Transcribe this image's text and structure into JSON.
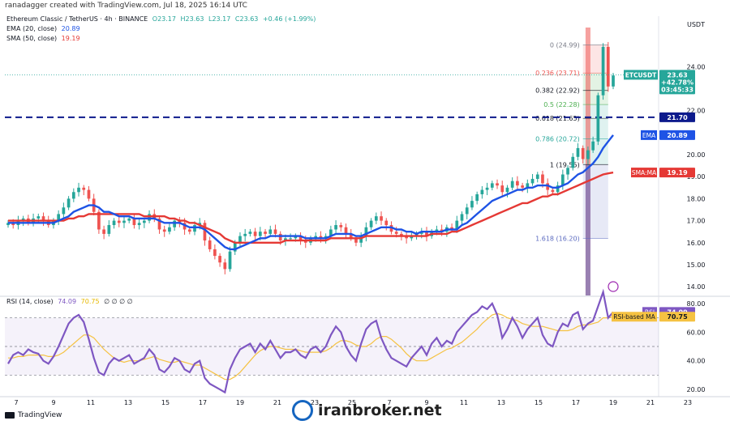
{
  "credit": "ranadagger created with TradingView.com, Jul 18, 2025 16:14 UTC",
  "legend": {
    "pair": "Ethereum Classic / TetherUS · 4h · BINANCE",
    "o": "O23.17",
    "h": "H23.63",
    "l": "L23.17",
    "c": "C23.63",
    "chg": "+0.46 (+1.99%)",
    "ema_label": "EMA (20, close)",
    "ema_value": "20.89",
    "sma_label": "SMA (50, close)",
    "sma_value": "19.19",
    "rsi_label": "RSI (14, close)",
    "rsi_value": "74.09",
    "rsima_value": "70.75",
    "rsi_extra": "∅ ∅ ∅ ∅"
  },
  "tv_brand": "TradingView",
  "watermark": "iranbroker.net",
  "colors": {
    "up": "#26a69a",
    "down": "#ef5350",
    "ema": "#1e53e5",
    "sma": "#e53935",
    "rsi": "#7e57c2",
    "rsima": "#f5c242",
    "level": "#0d1a8c"
  },
  "chart_data": [
    {
      "type": "candlestick",
      "title": "Ethereum Classic / TetherUS · 4h · BINANCE",
      "currency": "USDT",
      "ylim": [
        13.6,
        26.0
      ],
      "y_ticks": [
        "24.00",
        "22.00",
        "20.00",
        "19.00",
        "18.00",
        "17.00",
        "16.00",
        "15.00",
        "14.00"
      ],
      "x_ticks": [
        "7",
        "9",
        "11",
        "13",
        "15",
        "17",
        "19",
        "21",
        "23",
        "25",
        "7",
        "9",
        "11",
        "13",
        "15",
        "17",
        "19",
        "21",
        "23"
      ],
      "close": [
        16.9,
        16.8,
        17.0,
        17.1,
        16.9,
        17.1,
        17.2,
        17.0,
        16.8,
        17.0,
        17.3,
        17.6,
        18.0,
        18.3,
        18.5,
        18.4,
        18.0,
        17.4,
        16.6,
        16.4,
        16.8,
        17.0,
        16.9,
        17.0,
        17.1,
        16.8,
        16.9,
        17.0,
        17.3,
        17.1,
        16.6,
        16.5,
        16.7,
        17.0,
        16.9,
        16.6,
        16.5,
        16.8,
        16.9,
        16.1,
        15.7,
        15.4,
        15.1,
        14.8,
        15.6,
        16.0,
        16.3,
        16.4,
        16.5,
        16.3,
        16.5,
        16.4,
        16.6,
        16.4,
        16.1,
        16.2,
        16.2,
        16.3,
        16.1,
        16.0,
        16.2,
        16.3,
        16.2,
        16.3,
        16.6,
        16.8,
        16.7,
        16.4,
        16.2,
        16.0,
        16.3,
        16.7,
        17.0,
        17.2,
        17.0,
        16.8,
        16.5,
        16.4,
        16.3,
        16.2,
        16.3,
        16.4,
        16.5,
        16.3,
        16.5,
        16.6,
        16.5,
        16.7,
        16.6,
        17.0,
        17.3,
        17.6,
        17.9,
        18.2,
        18.4,
        18.5,
        18.7,
        18.6,
        18.3,
        18.5,
        18.8,
        18.6,
        18.5,
        18.7,
        18.9,
        19.1,
        18.7,
        18.4,
        18.3,
        18.6,
        19.1,
        19.4,
        19.9,
        20.3,
        19.8,
        20.2,
        20.6,
        22.7,
        24.9,
        23.1,
        23.6
      ],
      "key_level": "21.70",
      "price_label": "23.63",
      "price_change_label": "+42.78%",
      "countdown_label": "03:45:33",
      "symbol_label": "ETCUSDT",
      "fibonacci": [
        {
          "label": "0 (24.99)",
          "value": 24.99
        },
        {
          "label": "0.236 (23.71)",
          "value": 23.71
        },
        {
          "label": "0.382 (22.92)",
          "value": 22.92
        },
        {
          "label": "0.5 (22.28)",
          "value": 22.28
        },
        {
          "label": "0.618 (21.65)",
          "value": 21.65
        },
        {
          "label": "0.786 (20.72)",
          "value": 20.72
        },
        {
          "label": "1 (19.55)",
          "value": 19.55
        },
        {
          "label": "1.618 (16.20)",
          "value": 16.2
        }
      ],
      "series": [
        {
          "name": "EMA",
          "last": "20.89",
          "values": [
            16.9,
            16.9,
            16.9,
            16.9,
            16.9,
            16.9,
            16.9,
            16.9,
            16.9,
            16.9,
            17.0,
            17.1,
            17.2,
            17.4,
            17.5,
            17.6,
            17.7,
            17.7,
            17.6,
            17.4,
            17.4,
            17.3,
            17.2,
            17.2,
            17.2,
            17.1,
            17.1,
            17.1,
            17.1,
            17.1,
            17.0,
            16.9,
            16.9,
            16.9,
            16.9,
            16.8,
            16.7,
            16.7,
            16.7,
            16.6,
            16.4,
            16.2,
            16.0,
            15.8,
            15.7,
            15.7,
            15.8,
            15.9,
            16.0,
            16.1,
            16.2,
            16.2,
            16.3,
            16.3,
            16.3,
            16.3,
            16.3,
            16.3,
            16.3,
            16.2,
            16.2,
            16.2,
            16.2,
            16.2,
            16.3,
            16.4,
            16.4,
            16.4,
            16.4,
            16.3,
            16.3,
            16.4,
            16.5,
            16.6,
            16.7,
            16.7,
            16.7,
            16.6,
            16.6,
            16.5,
            16.5,
            16.4,
            16.5,
            16.5,
            16.5,
            16.5,
            16.5,
            16.6,
            16.6,
            16.6,
            16.8,
            16.9,
            17.1,
            17.3,
            17.5,
            17.7,
            17.9,
            18.0,
            18.1,
            18.2,
            18.3,
            18.4,
            18.4,
            18.5,
            18.5,
            18.6,
            18.6,
            18.6,
            18.5,
            18.5,
            18.6,
            18.7,
            18.9,
            19.1,
            19.2,
            19.4,
            19.6,
            19.9,
            20.3,
            20.6,
            20.89
          ]
        },
        {
          "name": "SMA:MA",
          "last": "19.19",
          "values": [
            17.0,
            17.0,
            17.0,
            17.0,
            17.0,
            17.0,
            17.0,
            17.0,
            17.0,
            17.0,
            17.0,
            17.0,
            17.1,
            17.1,
            17.2,
            17.2,
            17.3,
            17.3,
            17.3,
            17.3,
            17.3,
            17.3,
            17.3,
            17.3,
            17.3,
            17.3,
            17.3,
            17.2,
            17.2,
            17.2,
            17.2,
            17.2,
            17.1,
            17.1,
            17.0,
            17.0,
            16.9,
            16.9,
            16.8,
            16.7,
            16.6,
            16.5,
            16.4,
            16.2,
            16.1,
            16.0,
            16.0,
            16.0,
            16.0,
            16.0,
            16.0,
            16.0,
            16.0,
            16.0,
            16.0,
            16.1,
            16.1,
            16.1,
            16.1,
            16.1,
            16.1,
            16.1,
            16.1,
            16.1,
            16.2,
            16.2,
            16.2,
            16.2,
            16.2,
            16.2,
            16.2,
            16.3,
            16.3,
            16.3,
            16.3,
            16.3,
            16.3,
            16.3,
            16.3,
            16.3,
            16.3,
            16.3,
            16.3,
            16.3,
            16.4,
            16.4,
            16.4,
            16.4,
            16.5,
            16.5,
            16.6,
            16.7,
            16.8,
            16.9,
            17.0,
            17.1,
            17.2,
            17.3,
            17.4,
            17.5,
            17.6,
            17.7,
            17.8,
            17.8,
            17.9,
            18.0,
            18.1,
            18.1,
            18.2,
            18.2,
            18.3,
            18.4,
            18.5,
            18.6,
            18.7,
            18.8,
            18.9,
            19.0,
            19.1,
            19.15,
            19.19
          ]
        }
      ]
    },
    {
      "type": "line",
      "title": "RSI (14, close)",
      "ylim": [
        15,
        85
      ],
      "y_ticks": [
        "80.00",
        "60.00",
        "40.00",
        "20.00"
      ],
      "levels": [
        70,
        50,
        30
      ],
      "series": [
        {
          "name": "RSI",
          "last": "74.09",
          "values": [
            38,
            44,
            46,
            44,
            48,
            46,
            45,
            40,
            38,
            43,
            50,
            58,
            66,
            70,
            72,
            67,
            55,
            42,
            32,
            30,
            38,
            42,
            40,
            42,
            44,
            38,
            40,
            42,
            48,
            44,
            34,
            32,
            36,
            42,
            40,
            34,
            32,
            38,
            40,
            28,
            24,
            22,
            20,
            18,
            34,
            42,
            48,
            50,
            52,
            46,
            52,
            48,
            54,
            48,
            42,
            46,
            46,
            48,
            44,
            42,
            48,
            50,
            46,
            50,
            58,
            64,
            60,
            50,
            44,
            40,
            52,
            62,
            66,
            68,
            56,
            48,
            42,
            40,
            38,
            36,
            42,
            46,
            50,
            44,
            52,
            56,
            50,
            54,
            52,
            60,
            64,
            68,
            72,
            74,
            78,
            76,
            80,
            72,
            56,
            62,
            70,
            64,
            56,
            62,
            66,
            70,
            58,
            52,
            50,
            60,
            66,
            64,
            72,
            74,
            62,
            66,
            68,
            78,
            88,
            70,
            74
          ]
        },
        {
          "name": "RSI-based MA",
          "last": "70.75",
          "values": [
            42,
            42,
            43,
            43,
            44,
            44,
            44,
            44,
            43,
            43,
            44,
            46,
            49,
            52,
            55,
            58,
            58,
            56,
            52,
            48,
            45,
            42,
            40,
            39,
            40,
            40,
            40,
            41,
            42,
            43,
            41,
            40,
            39,
            39,
            40,
            39,
            38,
            37,
            37,
            35,
            33,
            31,
            29,
            27,
            27,
            29,
            32,
            36,
            40,
            44,
            47,
            49,
            50,
            50,
            49,
            48,
            48,
            48,
            47,
            46,
            46,
            46,
            46,
            47,
            49,
            52,
            54,
            54,
            53,
            51,
            50,
            50,
            52,
            55,
            57,
            57,
            55,
            52,
            49,
            45,
            42,
            40,
            40,
            40,
            42,
            44,
            46,
            48,
            49,
            51,
            53,
            56,
            59,
            62,
            66,
            69,
            72,
            73,
            72,
            70,
            69,
            68,
            66,
            65,
            64,
            64,
            64,
            63,
            62,
            61,
            61,
            61,
            62,
            64,
            65,
            65,
            66,
            67,
            70,
            70,
            70.75
          ]
        }
      ],
      "highlighted_label": "RSI-based MA"
    }
  ]
}
